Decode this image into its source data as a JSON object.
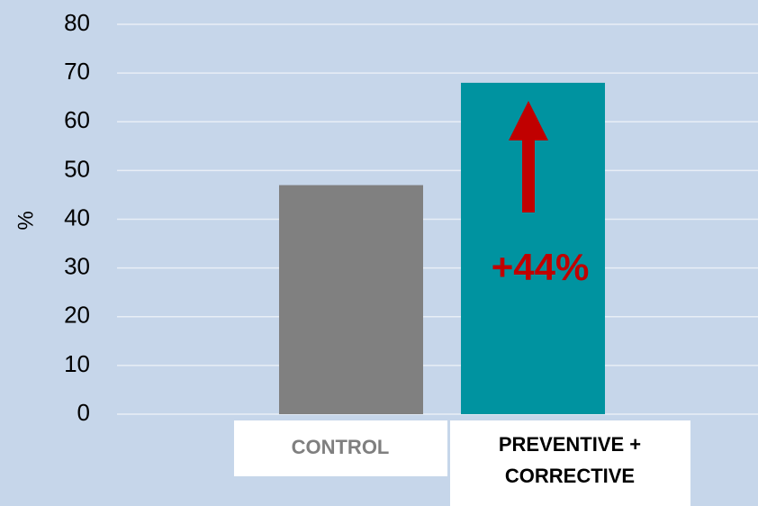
{
  "chart_data": {
    "type": "bar",
    "y_label": "%",
    "categories": [
      "CONTROL",
      "PREVENTIVE + CORRECTIVE"
    ],
    "values": [
      47,
      68
    ],
    "colors": [
      "#808080",
      "#0093a0"
    ],
    "ylim": [
      0,
      80
    ],
    "yticks": [
      0,
      10,
      20,
      30,
      40,
      50,
      60,
      70,
      80
    ],
    "grid": true,
    "annotation": "+44%"
  }
}
